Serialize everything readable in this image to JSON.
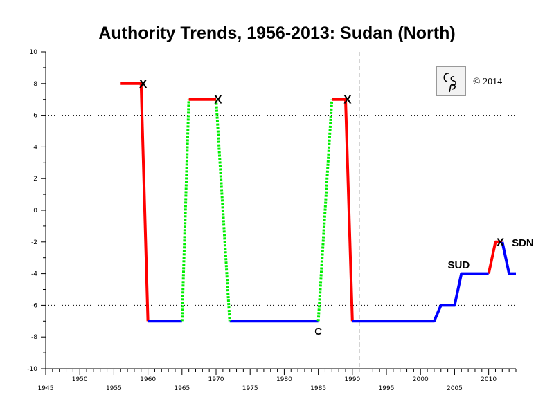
{
  "chart_data": {
    "type": "line",
    "title": "Authority Trends, 1956-2013: Sudan (North)",
    "xlabel": "",
    "ylabel": "",
    "xlim": [
      1945,
      2014
    ],
    "ylim": [
      -10,
      10
    ],
    "x_ticks_upper": [
      "1950",
      "1960",
      "1970",
      "1980",
      "1990",
      "2000",
      "2010"
    ],
    "x_ticks_lower": [
      "1945",
      "1955",
      "1965",
      "1975",
      "1985",
      "1995",
      "2005"
    ],
    "y_ticks": [
      "10",
      "8",
      "6",
      "4",
      "2",
      "0",
      "-2",
      "-4",
      "-6",
      "-8",
      "-10"
    ],
    "reference_lines": {
      "dotted_y": [
        6,
        -6
      ],
      "dashed_x": [
        1991
      ]
    },
    "series": [
      {
        "style": "democracy/autocracy",
        "color": "#ff0000",
        "segments": [
          [
            [
              1956,
              8
            ],
            [
              1959,
              8
            ],
            [
              1960,
              -7
            ]
          ],
          [
            [
              1987,
              7
            ],
            [
              1989,
              7
            ],
            [
              1990,
              -7
            ]
          ],
          [
            [
              2010,
              -4
            ],
            [
              2011,
              -2
            ],
            [
              2012,
              -2
            ]
          ]
        ]
      },
      {
        "style": "regime",
        "color": "#0000ff",
        "segments": [
          [
            [
              1960,
              -7
            ],
            [
              1965,
              -7
            ]
          ],
          [
            [
              1972,
              -7
            ],
            [
              1985,
              -7
            ]
          ],
          [
            [
              1990,
              -7
            ],
            [
              2002,
              -7
            ],
            [
              2003,
              -6
            ],
            [
              2005,
              -6
            ],
            [
              2006,
              -4
            ],
            [
              2010,
              -4
            ]
          ],
          [
            [
              2012,
              -2
            ],
            [
              2013,
              -4
            ],
            [
              2014,
              -4
            ]
          ]
        ]
      },
      {
        "style": "interregnum",
        "color": "#00ee00",
        "segments": [
          [
            [
              1965,
              -7
            ],
            [
              1966,
              7
            ]
          ],
          [
            [
              1970,
              7
            ],
            [
              1972,
              -7
            ]
          ],
          [
            [
              1985,
              -7
            ],
            [
              1987,
              7
            ]
          ]
        ]
      }
    ],
    "extra_segments": [
      {
        "color": "#ff0000",
        "points": [
          [
            1966,
            7
          ],
          [
            1970,
            7
          ]
        ]
      }
    ],
    "annotations": [
      {
        "text": "X",
        "x": 1959.3,
        "y": 8
      },
      {
        "text": "X",
        "x": 1970.3,
        "y": 7
      },
      {
        "text": "X",
        "x": 1989.3,
        "y": 7
      },
      {
        "text": "C",
        "x": 1985,
        "y": -7.6
      },
      {
        "text": "SUD",
        "x": 2005.6,
        "y": -3.4
      },
      {
        "text": "X",
        "x": 2011.7,
        "y": -2
      },
      {
        "text": "SDN",
        "x": 2013.4,
        "y": -2
      }
    ],
    "copyright": "© 2014"
  }
}
